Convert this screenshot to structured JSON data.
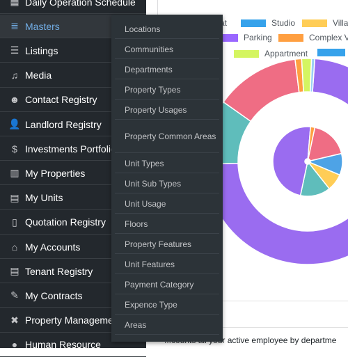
{
  "sidebar": {
    "items": [
      {
        "label": "Daily Operation Schedule",
        "icon": "calendar-icon"
      },
      {
        "label": "Masters",
        "icon": "database-icon",
        "active": true
      },
      {
        "label": "Listings",
        "icon": "list-icon"
      },
      {
        "label": "Media",
        "icon": "media-icon"
      },
      {
        "label": "Contact Registry",
        "icon": "groups-icon"
      },
      {
        "label": "Landlord Registry",
        "icon": "user-icon"
      },
      {
        "label": "Investments Portfolio",
        "icon": "dollar-icon"
      },
      {
        "label": "My Properties",
        "icon": "building-icon"
      },
      {
        "label": "My Units",
        "icon": "id-card-icon"
      },
      {
        "label": "Quotation Registry",
        "icon": "document-icon"
      },
      {
        "label": "My Accounts",
        "icon": "bank-icon"
      },
      {
        "label": "Tenant Registry",
        "icon": "id-card-icon"
      },
      {
        "label": "My Contracts",
        "icon": "edit-icon"
      },
      {
        "label": "Property Management",
        "icon": "wrench-icon"
      },
      {
        "label": "Human Resource",
        "icon": "person-icon"
      }
    ]
  },
  "flyout": {
    "items": [
      "Locations",
      "Communities",
      "Departments",
      "Property Types",
      "Property Usages",
      "Property Common Areas",
      "Unit Types",
      "Unit Sub Types",
      "Unit Usage",
      "Floors",
      "Property Features",
      "Unit Features",
      "Payment Category",
      "Expence Type",
      "Areas"
    ]
  },
  "chart_data": {
    "type": "pie",
    "variant": "nested-doughnut",
    "legend": [
      {
        "label": "Flat",
        "color": "#36a2eb"
      },
      {
        "label": "Studio",
        "color": "#36a2eb"
      },
      {
        "label": "Villa",
        "color": "#ffcd56"
      },
      {
        "label": "Parking",
        "color": "#9966ff"
      },
      {
        "label": "Complex V",
        "color": "#ff9f40"
      },
      {
        "label": "Appartment",
        "color": "#d4f561"
      }
    ],
    "outer_ring": [
      {
        "category": "Parking",
        "value": 72,
        "color": "#9a6cf0"
      },
      {
        "category": "Teal segment",
        "value": 10,
        "color": "#5fbdbb"
      },
      {
        "category": "Red segment",
        "value": 13,
        "color": "#ef6d84"
      },
      {
        "category": "Complex V",
        "value": 1,
        "color": "#ff9f40"
      },
      {
        "category": "Appartment",
        "value": 1.5,
        "color": "#d4f561"
      },
      {
        "category": "Extra",
        "value": 0.5,
        "color": "#9ad0f5"
      }
    ],
    "inner_ring": [
      {
        "category": "Red segment",
        "value": 18,
        "color": "#ef6d84"
      },
      {
        "category": "Flat",
        "value": 10,
        "color": "#4ea3e6"
      },
      {
        "category": "Villa",
        "value": 8,
        "color": "#ffcd56"
      },
      {
        "category": "Teal segment",
        "value": 14,
        "color": "#5fbdbb"
      },
      {
        "category": "Parking",
        "value": 48,
        "color": "#9a6cf0"
      },
      {
        "category": "Complex V",
        "value": 2,
        "color": "#ff9f40"
      }
    ]
  },
  "main": {
    "footer_text": "...counts all your active employee by departme"
  }
}
